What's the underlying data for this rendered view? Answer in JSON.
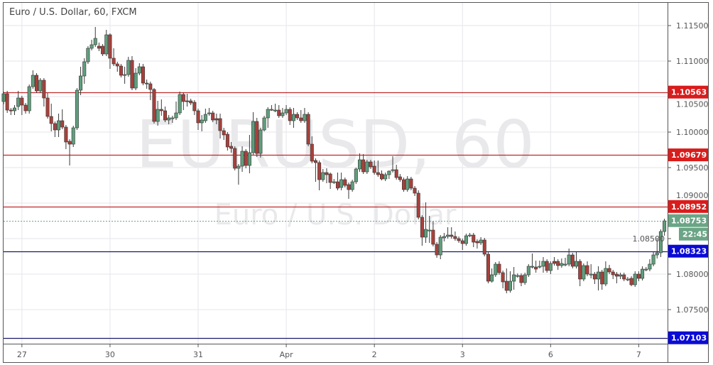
{
  "header": {
    "title": "Euro / U.S. Dollar, 60, FXCM"
  },
  "watermark": {
    "symbol": "EURUSD, 60",
    "name": "Euro / U.S. Dollar"
  },
  "colors": {
    "up": "#5f9e7c",
    "down": "#a8403b",
    "resistance": "#d91c1c",
    "support": "#0a0ad6",
    "support_line": "#1a1a6e",
    "resistance_line": "#c0282a",
    "last_price": "#6aa585"
  },
  "chart_data": {
    "type": "candlestick",
    "symbol": "EURUSD",
    "timeframe": "60",
    "source": "FXCM",
    "ylim": [
      1.0686,
      1.1182
    ],
    "y_ticks": [
      "1.11500",
      "1.11000",
      "1.10500",
      "1.10000",
      "1.09500",
      "1.09000",
      "1.08500",
      "1.08000",
      "1.07500"
    ],
    "x_labels": [
      {
        "label": "27",
        "candle": 5
      },
      {
        "label": "30",
        "candle": 29
      },
      {
        "label": "31",
        "candle": 53
      },
      {
        "label": "Apr",
        "candle": 77
      },
      {
        "label": "2",
        "candle": 101
      },
      {
        "label": "3",
        "candle": 125
      },
      {
        "label": "6",
        "candle": 149
      },
      {
        "label": "7",
        "candle": 173
      }
    ],
    "grid": true,
    "levels": [
      {
        "price": 1.10563,
        "label": "1.10563",
        "kind": "resistance"
      },
      {
        "price": 1.09679,
        "label": "1.09679",
        "kind": "resistance"
      },
      {
        "price": 1.08952,
        "label": "1.08952",
        "kind": "resistance"
      },
      {
        "price": 1.08323,
        "label": "1.08323",
        "kind": "support"
      },
      {
        "price": 1.07103,
        "label": "1.07103",
        "kind": "support"
      }
    ],
    "last_price": {
      "price": 1.08753,
      "label": "1.08753",
      "countdown": "22:45"
    },
    "ohlc_fields": [
      "open",
      "high",
      "low",
      "close"
    ],
    "candles": [
      [
        1.1043,
        1.1057,
        1.1039,
        1.1054
      ],
      [
        1.1054,
        1.1058,
        1.1027,
        1.1031
      ],
      [
        1.1031,
        1.1034,
        1.1024,
        1.103
      ],
      [
        1.103,
        1.1038,
        1.1024,
        1.1034
      ],
      [
        1.1036,
        1.1058,
        1.1031,
        1.1048
      ],
      [
        1.1048,
        1.1051,
        1.1024,
        1.1038
      ],
      [
        1.1038,
        1.1041,
        1.1026,
        1.103
      ],
      [
        1.103,
        1.1067,
        1.1026,
        1.1064
      ],
      [
        1.1064,
        1.1087,
        1.1061,
        1.108
      ],
      [
        1.108,
        1.1083,
        1.1055,
        1.1058
      ],
      [
        1.1058,
        1.1076,
        1.1055,
        1.1073
      ],
      [
        1.1073,
        1.1076,
        1.1036,
        1.1048
      ],
      [
        1.1048,
        1.1055,
        1.1019,
        1.1022
      ],
      [
        1.1022,
        1.104,
        1.1001,
        1.1012
      ],
      [
        1.1012,
        1.1015,
        1.0993,
        1.1003
      ],
      [
        1.1003,
        1.1026,
        1.0993,
        1.1016
      ],
      [
        1.1016,
        1.1032,
        1.1004,
        1.1007
      ],
      [
        1.1007,
        1.101,
        1.0976,
        1.0986
      ],
      [
        1.0987,
        1.099,
        1.0953,
        1.0983
      ],
      [
        1.0983,
        1.1009,
        1.0979,
        1.1006
      ],
      [
        1.1006,
        1.1062,
        1.1003,
        1.1059
      ],
      [
        1.1059,
        1.1092,
        1.1052,
        1.1079
      ],
      [
        1.1079,
        1.1104,
        1.1068,
        1.1099
      ],
      [
        1.1099,
        1.1121,
        1.1096,
        1.1118
      ],
      [
        1.1118,
        1.113,
        1.1115,
        1.1123
      ],
      [
        1.1123,
        1.1148,
        1.112,
        1.1132
      ],
      [
        1.1121,
        1.1126,
        1.1114,
        1.1118
      ],
      [
        1.1121,
        1.1124,
        1.1107,
        1.111
      ],
      [
        1.111,
        1.1144,
        1.1107,
        1.1137
      ],
      [
        1.1137,
        1.1139,
        1.1089,
        1.1104
      ],
      [
        1.1104,
        1.1118,
        1.1093,
        1.1096
      ],
      [
        1.1096,
        1.1099,
        1.1085,
        1.1093
      ],
      [
        1.1093,
        1.1096,
        1.1077,
        1.108
      ],
      [
        1.1081,
        1.1092,
        1.1068,
        1.1081
      ],
      [
        1.1081,
        1.1106,
        1.1078,
        1.1101
      ],
      [
        1.1101,
        1.1107,
        1.1059,
        1.1062
      ],
      [
        1.1062,
        1.109,
        1.1059,
        1.1083
      ],
      [
        1.1083,
        1.1097,
        1.108,
        1.1092
      ],
      [
        1.1092,
        1.1096,
        1.1066,
        1.1069
      ],
      [
        1.1069,
        1.1074,
        1.1061,
        1.1068
      ],
      [
        1.1068,
        1.1071,
        1.1045,
        1.106
      ],
      [
        1.106,
        1.1062,
        1.1012,
        1.1015
      ],
      [
        1.1015,
        1.1044,
        1.1009,
        1.1032
      ],
      [
        1.1032,
        1.1046,
        1.1023,
        1.103
      ],
      [
        1.103,
        1.1036,
        1.1014,
        1.1017
      ],
      [
        1.1017,
        1.1024,
        1.1011,
        1.102
      ],
      [
        1.102,
        1.1023,
        1.1013,
        1.102
      ],
      [
        1.102,
        1.1043,
        1.1017,
        1.1027
      ],
      [
        1.1027,
        1.1057,
        1.1024,
        1.1053
      ],
      [
        1.1053,
        1.1056,
        1.1031,
        1.1043
      ],
      [
        1.1044,
        1.1054,
        1.1036,
        1.1043
      ],
      [
        1.1044,
        1.1047,
        1.1038,
        1.1041
      ],
      [
        1.1042,
        1.1045,
        1.1024,
        1.103
      ],
      [
        1.103,
        1.1033,
        1.1003,
        1.1013
      ],
      [
        1.1013,
        1.1024,
        1.1001,
        1.1017
      ],
      [
        1.1016,
        1.1033,
        1.1013,
        1.1025
      ],
      [
        1.1027,
        1.1034,
        1.1023,
        1.1027
      ],
      [
        1.1027,
        1.103,
        1.1014,
        1.1017
      ],
      [
        1.1019,
        1.1026,
        1.1011,
        1.1017
      ],
      [
        1.1019,
        1.1026,
        1.0991,
        1.1002
      ],
      [
        1.1002,
        1.1006,
        1.0989,
        1.0996
      ],
      [
        1.0997,
        1.1,
        1.0974,
        1.0979
      ],
      [
        1.098,
        1.0986,
        1.0971,
        1.0977
      ],
      [
        1.0977,
        1.098,
        1.0946,
        1.0949
      ],
      [
        1.0949,
        1.0955,
        1.0926,
        1.0952
      ],
      [
        1.0952,
        1.098,
        1.0944,
        1.0973
      ],
      [
        1.0973,
        1.0976,
        1.0949,
        1.0953
      ],
      [
        1.0953,
        1.0996,
        1.0942,
        1.0971
      ],
      [
        1.0971,
        1.1028,
        1.0968,
        1.1015
      ],
      [
        1.1015,
        1.102,
        1.0965,
        1.097
      ],
      [
        1.097,
        1.1006,
        1.0964,
        1.1003
      ],
      [
        1.1003,
        1.1023,
        1.1001,
        1.102
      ],
      [
        1.102,
        1.1035,
        1.1006,
        1.1032
      ],
      [
        1.1032,
        1.1038,
        1.103,
        1.1032
      ],
      [
        1.1031,
        1.104,
        1.1028,
        1.1031
      ],
      [
        1.1031,
        1.1038,
        1.102,
        1.1023
      ],
      [
        1.1023,
        1.1034,
        1.102,
        1.1027
      ],
      [
        1.1027,
        1.1038,
        1.1024,
        1.1032
      ],
      [
        1.1032,
        1.1035,
        1.101,
        1.1016
      ],
      [
        1.1016,
        1.1034,
        1.1006,
        1.1025
      ],
      [
        1.1025,
        1.1028,
        1.1017,
        1.102
      ],
      [
        1.102,
        1.1031,
        1.1013,
        1.1016
      ],
      [
        1.1016,
        1.1034,
        1.1013,
        1.1025
      ],
      [
        1.1025,
        1.1028,
        1.098,
        1.0983
      ],
      [
        1.0983,
        1.0994,
        1.0956,
        1.0959
      ],
      [
        1.096,
        1.0963,
        1.093,
        1.0957
      ],
      [
        1.0957,
        1.096,
        1.0918,
        1.0933
      ],
      [
        1.0933,
        1.0948,
        1.093,
        1.0943
      ],
      [
        1.0943,
        1.0949,
        1.0928,
        1.094
      ],
      [
        1.0941,
        1.0943,
        1.092,
        1.0929
      ],
      [
        1.093,
        1.0934,
        1.0927,
        1.093
      ],
      [
        1.093,
        1.0943,
        1.0918,
        1.0921
      ],
      [
        1.0922,
        1.0943,
        1.0918,
        1.0933
      ],
      [
        1.0933,
        1.0936,
        1.0922,
        1.0925
      ],
      [
        1.0926,
        1.0929,
        1.0906,
        1.0919
      ],
      [
        1.0919,
        1.0933,
        1.0916,
        1.093
      ],
      [
        1.093,
        1.095,
        1.0927,
        1.0948
      ],
      [
        1.0948,
        1.097,
        1.0944,
        1.0961
      ],
      [
        1.0961,
        1.0969,
        1.0941,
        1.0944
      ],
      [
        1.0944,
        1.0961,
        1.0941,
        1.0958
      ],
      [
        1.0958,
        1.0961,
        1.0948,
        1.0951
      ],
      [
        1.0952,
        1.096,
        1.094,
        1.0943
      ],
      [
        1.0943,
        1.096,
        1.0937,
        1.094
      ],
      [
        1.0941,
        1.0946,
        1.0932,
        1.0934
      ],
      [
        1.0934,
        1.0943,
        1.0931,
        1.094
      ],
      [
        1.094,
        1.0946,
        1.0934,
        1.0945
      ],
      [
        1.0947,
        1.0966,
        1.0943,
        1.0947
      ],
      [
        1.0947,
        1.0954,
        1.0933,
        1.0936
      ],
      [
        1.0937,
        1.0941,
        1.093,
        1.0933
      ],
      [
        1.0933,
        1.0936,
        1.0916,
        1.0919
      ],
      [
        1.0919,
        1.0938,
        1.0916,
        1.0934
      ],
      [
        1.0934,
        1.0937,
        1.0918,
        1.0921
      ],
      [
        1.0921,
        1.0924,
        1.091,
        1.0914
      ],
      [
        1.0914,
        1.0918,
        1.0877,
        1.088
      ],
      [
        1.088,
        1.0883,
        1.084,
        1.0852
      ],
      [
        1.0852,
        1.0901,
        1.0844,
        1.0863
      ],
      [
        1.0862,
        1.0882,
        1.0844,
        1.0862
      ],
      [
        1.0862,
        1.0874,
        1.0839,
        1.0842
      ],
      [
        1.0842,
        1.0845,
        1.0823,
        1.0827
      ],
      [
        1.0827,
        1.0855,
        1.0821,
        1.0852
      ],
      [
        1.0851,
        1.0858,
        1.0846,
        1.0853
      ],
      [
        1.0853,
        1.0866,
        1.085,
        1.0855
      ],
      [
        1.0855,
        1.0866,
        1.085,
        1.0853
      ],
      [
        1.0853,
        1.086,
        1.0847,
        1.085
      ],
      [
        1.085,
        1.0853,
        1.0844,
        1.0847
      ],
      [
        1.0847,
        1.085,
        1.0834,
        1.0843
      ],
      [
        1.0843,
        1.0857,
        1.084,
        1.0854
      ],
      [
        1.0855,
        1.0858,
        1.0852,
        1.0855
      ],
      [
        1.0855,
        1.0858,
        1.0838,
        1.0845
      ],
      [
        1.0846,
        1.0849,
        1.0836,
        1.0844
      ],
      [
        1.0844,
        1.0852,
        1.0841,
        1.0848
      ],
      [
        1.0848,
        1.0851,
        1.0825,
        1.0828
      ],
      [
        1.0828,
        1.0831,
        1.0787,
        1.079
      ],
      [
        1.079,
        1.0808,
        1.0788,
        1.0799
      ],
      [
        1.0799,
        1.0817,
        1.0796,
        1.0814
      ],
      [
        1.0814,
        1.0818,
        1.0799,
        1.0802
      ],
      [
        1.0802,
        1.0805,
        1.078,
        1.0789
      ],
      [
        1.079,
        1.0808,
        1.0773,
        1.0777
      ],
      [
        1.0777,
        1.0804,
        1.0774,
        1.079
      ],
      [
        1.079,
        1.081,
        1.0778,
        1.0799
      ],
      [
        1.0798,
        1.0801,
        1.0795,
        1.0798
      ],
      [
        1.0798,
        1.0801,
        1.0783,
        1.0788
      ],
      [
        1.0788,
        1.0802,
        1.0785,
        1.0799
      ],
      [
        1.0799,
        1.0814,
        1.0796,
        1.0811
      ],
      [
        1.0811,
        1.0829,
        1.0808,
        1.0811
      ],
      [
        1.081,
        1.0819,
        1.0802,
        1.0807
      ],
      [
        1.0811,
        1.0819,
        1.0808,
        1.0811
      ],
      [
        1.0811,
        1.0824,
        1.0802,
        1.0818
      ],
      [
        1.0818,
        1.0821,
        1.0802,
        1.0805
      ],
      [
        1.0805,
        1.0818,
        1.08,
        1.0815
      ],
      [
        1.0818,
        1.0824,
        1.0812,
        1.0815
      ],
      [
        1.0818,
        1.0821,
        1.0806,
        1.0812
      ],
      [
        1.0812,
        1.0822,
        1.0809,
        1.0815
      ],
      [
        1.0814,
        1.0823,
        1.0811,
        1.0814
      ],
      [
        1.0814,
        1.0836,
        1.0811,
        1.0827
      ],
      [
        1.0827,
        1.083,
        1.0808,
        1.0811
      ],
      [
        1.0811,
        1.0831,
        1.0808,
        1.0818
      ],
      [
        1.0818,
        1.0821,
        1.0783,
        1.0793
      ],
      [
        1.0793,
        1.0815,
        1.079,
        1.0812
      ],
      [
        1.0812,
        1.0818,
        1.0797,
        1.08
      ],
      [
        1.08,
        1.0814,
        1.0794,
        1.08
      ],
      [
        1.08,
        1.0803,
        1.0786,
        1.0793
      ],
      [
        1.0793,
        1.0811,
        1.0777,
        1.0803
      ],
      [
        1.0803,
        1.0806,
        1.0778,
        1.0786
      ],
      [
        1.0786,
        1.0818,
        1.0783,
        1.0808
      ],
      [
        1.0808,
        1.0813,
        1.08,
        1.0803
      ],
      [
        1.0803,
        1.0806,
        1.0793,
        1.0799
      ],
      [
        1.08,
        1.0803,
        1.0787,
        1.0797
      ],
      [
        1.0797,
        1.0802,
        1.0793,
        1.0799
      ],
      [
        1.0799,
        1.0802,
        1.079,
        1.0793
      ],
      [
        1.0793,
        1.0796,
        1.079,
        1.0793
      ],
      [
        1.0794,
        1.0797,
        1.0783,
        1.0785
      ],
      [
        1.0785,
        1.0804,
        1.0782,
        1.08
      ],
      [
        1.08,
        1.0804,
        1.079,
        1.0794
      ],
      [
        1.0794,
        1.0811,
        1.0791,
        1.0807
      ],
      [
        1.0807,
        1.081,
        1.0804,
        1.0807
      ],
      [
        1.0807,
        1.0821,
        1.0804,
        1.0814
      ],
      [
        1.0814,
        1.0831,
        1.0811,
        1.0827
      ],
      [
        1.0827,
        1.0851,
        1.0822,
        1.083
      ],
      [
        1.083,
        1.0863,
        1.0824,
        1.086
      ],
      [
        1.086,
        1.0878,
        1.0854,
        1.0875
      ]
    ]
  }
}
